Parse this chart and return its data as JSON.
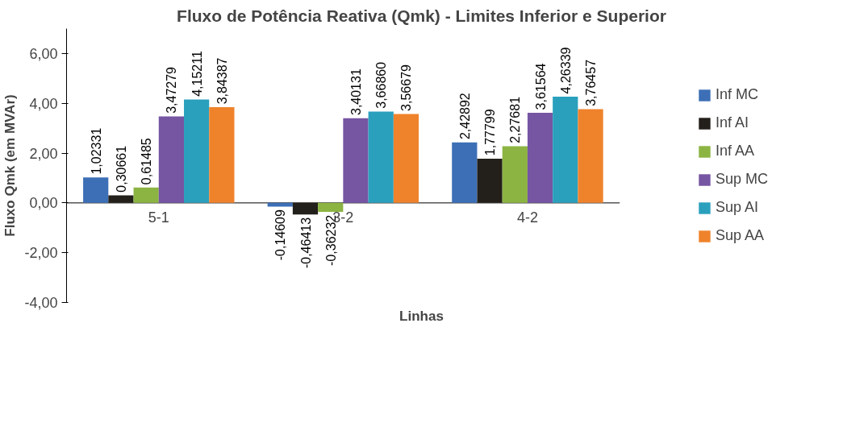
{
  "chart_data": {
    "type": "bar",
    "title": "Fluxo de Potência Reativa (Qmk) - Limites Inferior e Superior",
    "xlabel": "Linhas",
    "ylabel": "Fluxo Qmk (em MVAr)",
    "categories": [
      "5-1",
      "3-2",
      "4-2"
    ],
    "series": [
      {
        "name": "Inf MC",
        "color": "#3c6fb6",
        "values": [
          1.02331,
          -0.14609,
          2.42892
        ],
        "value_labels": [
          "1,02331",
          "-0,14609",
          "2,42892"
        ]
      },
      {
        "name": "Inf AI",
        "color": "#231f1a",
        "values": [
          0.30661,
          -0.46413,
          1.77799
        ],
        "value_labels": [
          "0,30661",
          "-0,46413",
          "1,77799"
        ]
      },
      {
        "name": "Inf AA",
        "color": "#8cb443",
        "values": [
          0.61485,
          -0.36232,
          2.27681
        ],
        "value_labels": [
          "0,61485",
          "-0,36232",
          "2,27681"
        ]
      },
      {
        "name": "Sup MC",
        "color": "#7655a3",
        "values": [
          3.47279,
          3.40131,
          3.61564
        ],
        "value_labels": [
          "3,47279",
          "3,40131",
          "3,61564"
        ]
      },
      {
        "name": "Sup AI",
        "color": "#2aa0bd",
        "values": [
          4.15211,
          3.6686,
          4.26339
        ],
        "value_labels": [
          "4,15211",
          "3,66860",
          "4,26339"
        ]
      },
      {
        "name": "Sup AA",
        "color": "#ef832c",
        "values": [
          3.84387,
          3.56679,
          3.76457
        ],
        "value_labels": [
          "3,84387",
          "3,56679",
          "3,76457"
        ]
      }
    ],
    "ylim": [
      -4,
      7
    ],
    "yticks": [
      {
        "value": -4,
        "label": "-4,00"
      },
      {
        "value": -2,
        "label": "-2,00"
      },
      {
        "value": 0,
        "label": "0,00"
      },
      {
        "value": 2,
        "label": "2,00"
      },
      {
        "value": 4,
        "label": "4,00"
      },
      {
        "value": 6,
        "label": "6,00"
      }
    ],
    "grid": false,
    "legend": "right"
  }
}
